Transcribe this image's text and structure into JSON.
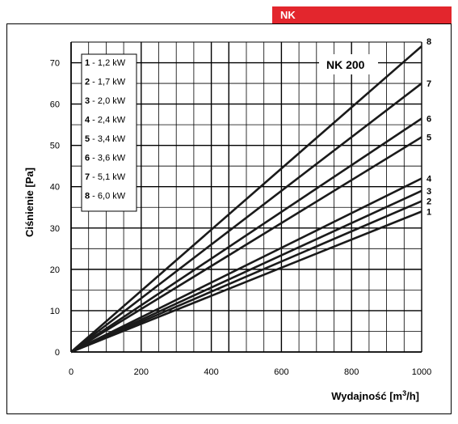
{
  "header": {
    "tab_label": "NK",
    "tab_color": "#e3262d"
  },
  "chart_data": {
    "type": "line",
    "model_label": "NK 200",
    "xlabel_main": "Wydajność [m",
    "xlabel_sup": "3",
    "xlabel_tail": "/h]",
    "ylabel": "Ciśnienie [Pa]",
    "xlim": [
      0,
      1000
    ],
    "ylim": [
      0,
      75
    ],
    "x_ticks": [
      0,
      200,
      400,
      600,
      800,
      1000
    ],
    "y_ticks": [
      0,
      10,
      20,
      30,
      40,
      50,
      60,
      70
    ],
    "grid": true,
    "legend": [
      {
        "num": "1",
        "text": " - 1,2 kW"
      },
      {
        "num": "2",
        "text": " - 1,7 kW"
      },
      {
        "num": "3",
        "text": " - 2,0 kW"
      },
      {
        "num": "4",
        "text": " - 2,4 kW"
      },
      {
        "num": "5",
        "text": " - 3,4 kW"
      },
      {
        "num": "6",
        "text": " - 3,6 kW"
      },
      {
        "num": "7",
        "text": " - 5,1 kW"
      },
      {
        "num": "8",
        "text": " - 6,0 kW"
      }
    ],
    "series": [
      {
        "name": "1",
        "x": [
          0,
          1000
        ],
        "y": [
          0,
          34
        ]
      },
      {
        "name": "2",
        "x": [
          0,
          1000
        ],
        "y": [
          0,
          36.5
        ]
      },
      {
        "name": "3",
        "x": [
          0,
          1000
        ],
        "y": [
          0,
          39
        ]
      },
      {
        "name": "4",
        "x": [
          0,
          1000
        ],
        "y": [
          0,
          42
        ]
      },
      {
        "name": "5",
        "x": [
          0,
          1000
        ],
        "y": [
          0,
          52
        ]
      },
      {
        "name": "6",
        "x": [
          0,
          1000
        ],
        "y": [
          0,
          56.5
        ]
      },
      {
        "name": "7",
        "x": [
          0,
          1000
        ],
        "y": [
          0,
          65
        ]
      },
      {
        "name": "8",
        "x": [
          0,
          1000
        ],
        "y": [
          0,
          74
        ]
      }
    ]
  }
}
